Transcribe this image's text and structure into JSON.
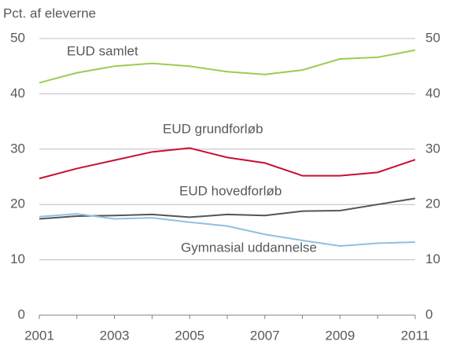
{
  "chart_data": {
    "type": "line",
    "y_label": "Pct. af eleverne",
    "x": [
      2001,
      2002,
      2003,
      2004,
      2005,
      2006,
      2007,
      2008,
      2009,
      2010,
      2011
    ],
    "xlim": [
      2001,
      2011
    ],
    "xticks": [
      2001,
      2003,
      2005,
      2007,
      2009,
      2011
    ],
    "ylim": [
      0,
      50
    ],
    "yticks": [
      0,
      10,
      20,
      30,
      40,
      50
    ],
    "y2lim": [
      0,
      50
    ],
    "y2ticks": [
      0,
      10,
      20,
      30,
      40,
      50
    ],
    "grid": true,
    "series": [
      {
        "name": "EUD samlet",
        "color": "#9acd52",
        "values": [
          42,
          43.8,
          45,
          45.5,
          45,
          44,
          43.5,
          44.3,
          46.3,
          46.6,
          47.9
        ]
      },
      {
        "name": "EUD grundforløb",
        "color": "#c8102e",
        "values": [
          24.7,
          26.5,
          28,
          29.5,
          30.2,
          28.5,
          27.5,
          25.2,
          25.2,
          25.8,
          28.1
        ]
      },
      {
        "name": "EUD hovedforløb",
        "color": "#555555",
        "values": [
          17.4,
          17.9,
          18,
          18.2,
          17.7,
          18.2,
          18,
          18.8,
          18.9,
          20,
          21.1
        ]
      },
      {
        "name": "Gymnasial uddannelse",
        "color": "#90c0e0",
        "values": [
          17.8,
          18.3,
          17.4,
          17.6,
          16.8,
          16.1,
          14.6,
          13.5,
          12.5,
          13,
          13.2
        ]
      }
    ]
  }
}
